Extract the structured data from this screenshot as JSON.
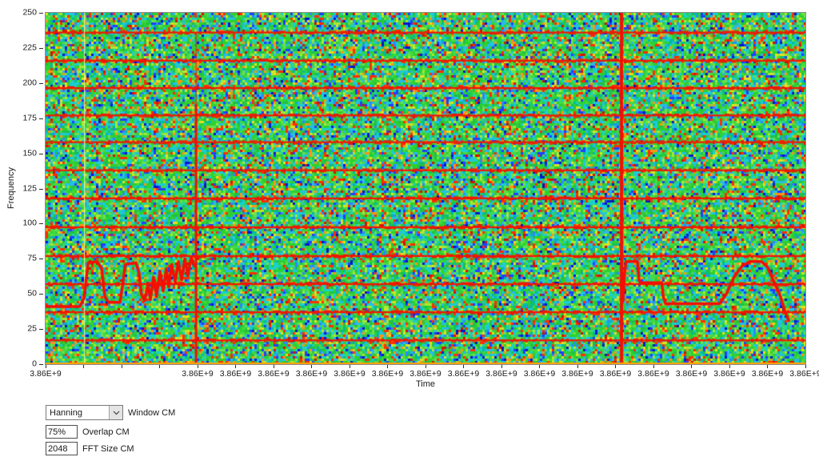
{
  "chart_data": {
    "type": "heatmap",
    "subtype": "spectrogram",
    "title": "",
    "xlabel": "Time",
    "ylabel": "Frequency",
    "ylim": [
      0,
      250
    ],
    "y_ticks": [
      0,
      25,
      50,
      75,
      100,
      125,
      150,
      175,
      200,
      225,
      250
    ],
    "x_tick_labels": [
      "3.86E+9",
      "3.86E+9",
      "3.86E+9",
      "3.86E+9",
      "3.86E+9",
      "3.86E+9",
      "3.86E+9",
      "3.86E+9",
      "3.86E+9",
      "3.86E+9",
      "3.86E+9",
      "3.86E+9",
      "3.86E+9",
      "3.86E+9",
      "3.86E+9",
      "3.86E+9",
      "3.86E+9",
      "3.86E+9"
    ],
    "grid": false,
    "noise_seed": 1337,
    "noise_palette": [
      {
        "c": "#2ed12e",
        "w": 14
      },
      {
        "c": "#45d945",
        "w": 10
      },
      {
        "c": "#1fbf4a",
        "w": 8
      },
      {
        "c": "#6ae04f",
        "w": 7
      },
      {
        "c": "#19cfcf",
        "w": 10
      },
      {
        "c": "#2ab8e8",
        "w": 6
      },
      {
        "c": "#00b8a9",
        "w": 5
      },
      {
        "c": "#a8e832",
        "w": 5
      },
      {
        "c": "#e3e020",
        "w": 3
      },
      {
        "c": "#ff9415",
        "w": 4
      },
      {
        "c": "#ff2e00",
        "w": 6
      },
      {
        "c": "#d11500",
        "w": 2
      },
      {
        "c": "#1f3fff",
        "w": 5
      },
      {
        "c": "#2e86ff",
        "w": 3
      },
      {
        "c": "#0017c8",
        "w": 2
      }
    ],
    "colors": {
      "interference_line": "#f21600",
      "event_line": "#f70d00",
      "trace": "#f70d00",
      "bottom_axis": "#ffa100",
      "faint_vertical": "rgba(240,250,160,0.85)",
      "tick_text": "#1a1a1a"
    },
    "interference_lines_freq": [
      17,
      37,
      57,
      77,
      97.5,
      118,
      138,
      158,
      177,
      196.5,
      216,
      236
    ],
    "event_lines": [
      {
        "x_frac": 0.198,
        "top_freq": 235,
        "solid_from_freq": 185,
        "width": 3
      },
      {
        "x_frac": 0.758,
        "top_freq": 250,
        "solid_from_freq": 250,
        "width": 4
      }
    ],
    "faint_vertical_x_frac": 0.0505,
    "trace1": [
      [
        0.0,
        41
      ],
      [
        0.045,
        41
      ],
      [
        0.0505,
        47
      ],
      [
        0.056,
        72
      ],
      [
        0.068,
        73
      ],
      [
        0.0737,
        68
      ],
      [
        0.078,
        48
      ],
      [
        0.083,
        44
      ],
      [
        0.098,
        44
      ],
      [
        0.101,
        55
      ],
      [
        0.105,
        71
      ],
      [
        0.119,
        72
      ],
      [
        0.123,
        65
      ],
      [
        0.126,
        50
      ],
      [
        0.1305,
        45
      ],
      [
        0.1347,
        57
      ],
      [
        0.138,
        46
      ],
      [
        0.142,
        62
      ],
      [
        0.146,
        48
      ],
      [
        0.1505,
        66
      ],
      [
        0.1547,
        52
      ],
      [
        0.159,
        68
      ],
      [
        0.162,
        55
      ],
      [
        0.166,
        71
      ],
      [
        0.1705,
        58
      ],
      [
        0.1747,
        73
      ],
      [
        0.179,
        60
      ],
      [
        0.1832,
        75
      ],
      [
        0.1874,
        63
      ],
      [
        0.1916,
        76
      ],
      [
        0.1958,
        70
      ]
    ],
    "trace2": [
      [
        0.76,
        45
      ],
      [
        0.762,
        65
      ],
      [
        0.764,
        73
      ],
      [
        0.779,
        73
      ],
      [
        0.781,
        60
      ],
      [
        0.783,
        58
      ],
      [
        0.811,
        58
      ],
      [
        0.813,
        48
      ],
      [
        0.816,
        43
      ],
      [
        0.887,
        43
      ],
      [
        0.896,
        50
      ],
      [
        0.906,
        62
      ],
      [
        0.917,
        70
      ],
      [
        0.927,
        73
      ],
      [
        0.942,
        73
      ],
      [
        0.95,
        69
      ],
      [
        0.966,
        50
      ],
      [
        0.973,
        38
      ],
      [
        0.978,
        31
      ]
    ]
  },
  "controls": {
    "window_select": {
      "value": "Hanning",
      "label": "Window CM"
    },
    "overlap": {
      "value": "75%",
      "label": "Overlap CM"
    },
    "fft_size": {
      "value": "2048",
      "label": "FFT Size CM"
    }
  }
}
